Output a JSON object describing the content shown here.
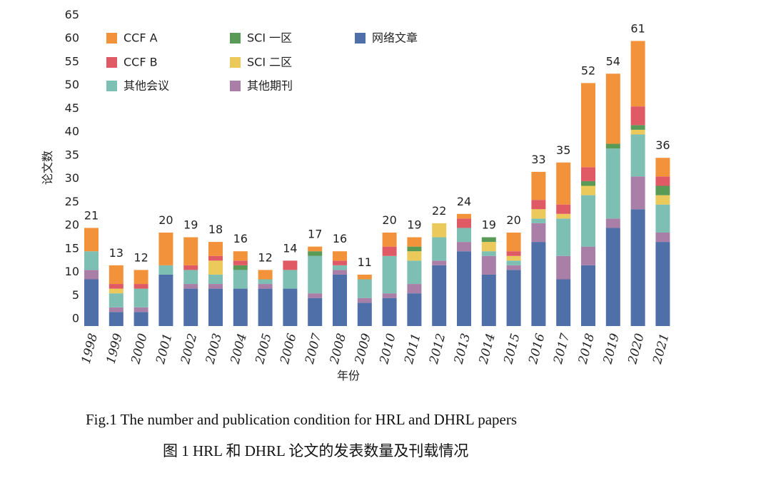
{
  "chart_data": {
    "type": "bar",
    "stacked": true,
    "ylabel": "论文数",
    "xlabel": "年份",
    "ylim": [
      0,
      65
    ],
    "yticks": [
      0,
      5,
      10,
      15,
      20,
      25,
      30,
      35,
      40,
      45,
      50,
      55,
      60,
      65
    ],
    "categories": [
      "1998",
      "1999",
      "2000",
      "2001",
      "2002",
      "2003",
      "2004",
      "2005",
      "2006",
      "2007",
      "2008",
      "2009",
      "2010",
      "2011",
      "2012",
      "2013",
      "2014",
      "2015",
      "2016",
      "2017",
      "2018",
      "2019",
      "2020",
      "2021"
    ],
    "totals": [
      21,
      13,
      12,
      20,
      19,
      18,
      16,
      12,
      14,
      17,
      16,
      11,
      20,
      19,
      22,
      24,
      19,
      20,
      33,
      35,
      52,
      54,
      61,
      36
    ],
    "series": [
      {
        "name": "网络文章",
        "color": "#4e6fa8",
        "values": [
          10,
          3,
          3,
          11,
          8,
          8,
          8,
          8,
          8,
          6,
          11,
          5,
          6,
          7,
          13,
          16,
          11,
          12,
          18,
          10,
          13,
          21,
          25,
          18
        ]
      },
      {
        "name": "其他期刊",
        "color": "#a97fa7",
        "values": [
          2,
          1,
          1,
          0,
          1,
          1,
          0,
          1,
          0,
          1,
          1,
          1,
          1,
          2,
          1,
          2,
          4,
          1,
          4,
          5,
          4,
          2,
          7,
          2
        ]
      },
      {
        "name": "其他会议",
        "color": "#7dbfb3",
        "values": [
          4,
          3,
          4,
          2,
          3,
          2,
          4,
          1,
          4,
          8,
          1,
          4,
          8,
          5,
          5,
          3,
          1,
          1,
          1,
          8,
          11,
          15,
          9,
          6
        ]
      },
      {
        "name": "SCI 二区",
        "color": "#ebc95a",
        "values": [
          0,
          1,
          0,
          0,
          0,
          3,
          0,
          0,
          0,
          0,
          0,
          0,
          0,
          2,
          3,
          0,
          2,
          1,
          2,
          1,
          2,
          0,
          1,
          2
        ]
      },
      {
        "name": "SCI 一区",
        "color": "#5a9a57",
        "values": [
          0,
          0,
          0,
          0,
          0,
          0,
          1,
          0,
          0,
          1,
          0,
          0,
          0,
          1,
          0,
          0,
          1,
          0,
          0,
          0,
          1,
          1,
          1,
          2
        ]
      },
      {
        "name": "CCF B",
        "color": "#e05a66",
        "values": [
          0,
          1,
          1,
          0,
          1,
          1,
          1,
          0,
          2,
          0,
          1,
          0,
          2,
          0,
          0,
          2,
          0,
          1,
          2,
          2,
          3,
          0,
          4,
          2
        ]
      },
      {
        "name": "CCF A",
        "color": "#f2923a",
        "values": [
          5,
          4,
          3,
          7,
          6,
          3,
          2,
          2,
          0,
          1,
          2,
          1,
          3,
          2,
          0,
          1,
          0,
          4,
          6,
          9,
          18,
          15,
          14,
          4
        ]
      }
    ],
    "legend": [
      {
        "name": "CCF A",
        "color": "#f2923a"
      },
      {
        "name": "SCI 一区",
        "color": "#5a9a57"
      },
      {
        "name": "网络文章",
        "color": "#4e6fa8"
      },
      {
        "name": "CCF B",
        "color": "#e05a66"
      },
      {
        "name": "SCI 二区",
        "color": "#ebc95a"
      },
      {
        "name": "其他会议",
        "color": "#7dbfb3"
      },
      {
        "name": "其他期刊",
        "color": "#a97fa7"
      }
    ]
  },
  "caption": {
    "en": "Fig.1    The number and publication condition for HRL and DHRL papers",
    "zh": "图 1    HRL 和 DHRL 论文的发表数量及刊载情况"
  }
}
